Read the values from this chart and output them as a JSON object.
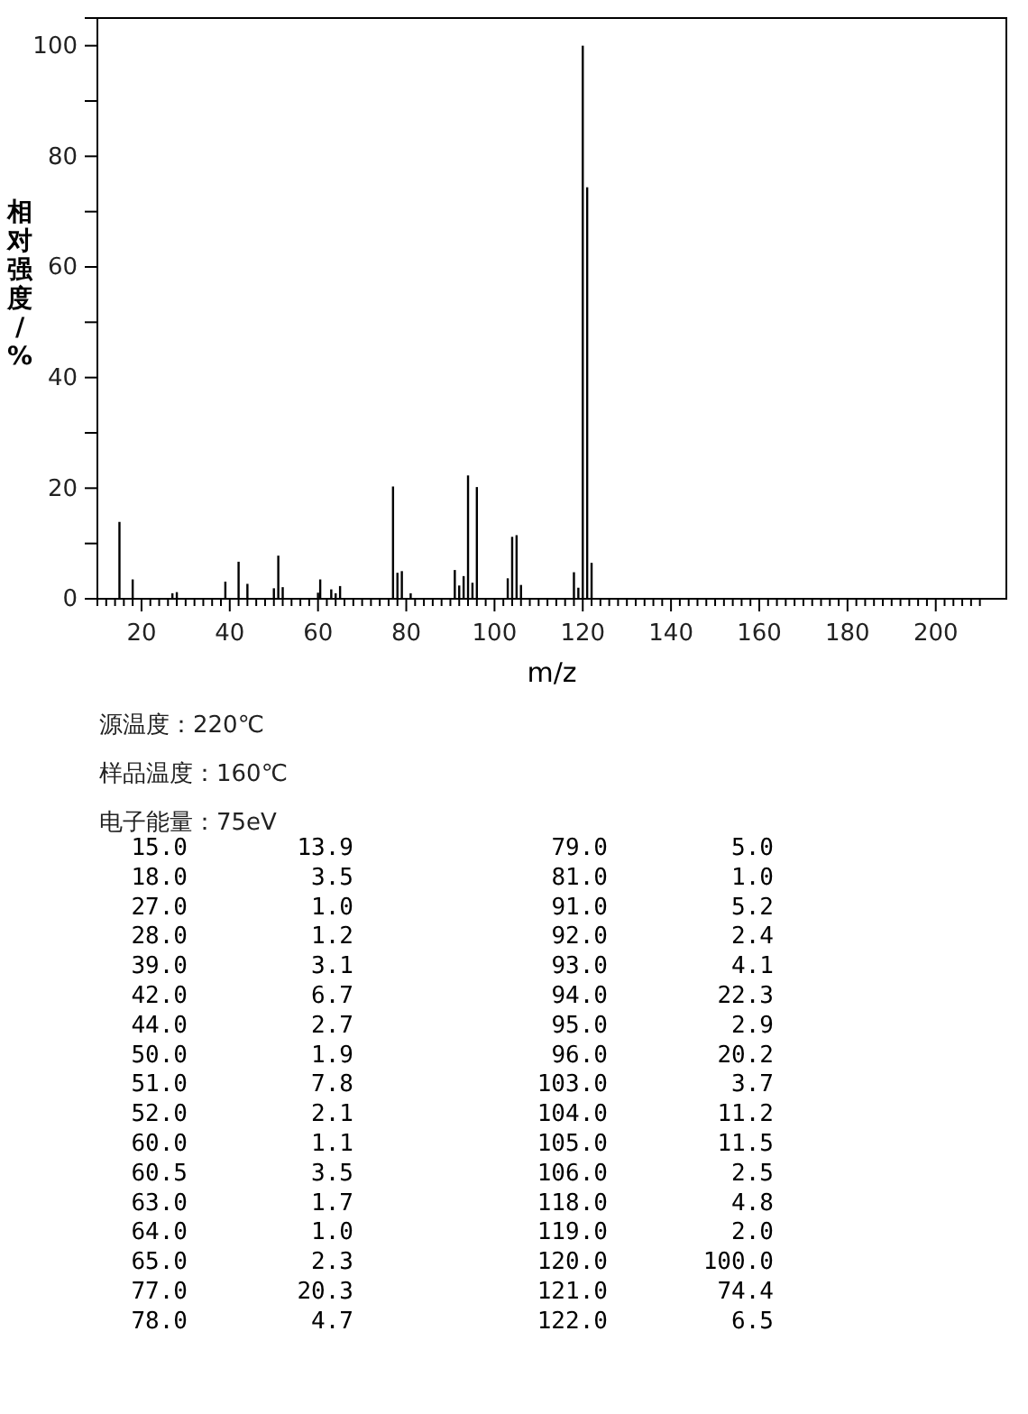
{
  "chart_data": [
    {
      "type": "bar",
      "xlabel": "m/z",
      "ylabel": "相对强度/%",
      "x": [
        15,
        18,
        27,
        28,
        39,
        42,
        44,
        50,
        51,
        52,
        60,
        60.5,
        63,
        64,
        65,
        77,
        78,
        79,
        81,
        91,
        92,
        93,
        94,
        95,
        96,
        103,
        104,
        105,
        106,
        118,
        119,
        120,
        121,
        122
      ],
      "values": [
        13.9,
        3.5,
        1.0,
        1.2,
        3.1,
        6.7,
        2.7,
        1.9,
        7.8,
        2.1,
        1.1,
        3.5,
        1.7,
        1.0,
        2.3,
        20.3,
        4.7,
        5.0,
        1.0,
        5.2,
        2.4,
        4.1,
        22.3,
        2.9,
        20.2,
        3.7,
        11.2,
        11.5,
        2.5,
        4.8,
        2.0,
        100.0,
        74.4,
        6.5
      ],
      "color": "#000000",
      "xlim": [
        10,
        216
      ],
      "ylim": [
        0,
        105
      ],
      "xticks": [
        {
          "value": 10,
          "label": null
        },
        {
          "value": 12,
          "label": null
        },
        {
          "value": 14,
          "label": null
        },
        {
          "value": 16,
          "label": null
        },
        {
          "value": 18,
          "label": null
        },
        20,
        {
          "value": 22,
          "label": null
        },
        {
          "value": 24,
          "label": null
        },
        {
          "value": 26,
          "label": null
        },
        {
          "value": 28,
          "label": null
        },
        {
          "value": 30,
          "label": null
        },
        {
          "value": 32,
          "label": null
        },
        {
          "value": 34,
          "label": null
        },
        {
          "value": 36,
          "label": null
        },
        {
          "value": 38,
          "label": null
        },
        40,
        {
          "value": 42,
          "label": null
        },
        {
          "value": 44,
          "label": null
        },
        {
          "value": 46,
          "label": null
        },
        {
          "value": 48,
          "label": null
        },
        {
          "value": 50,
          "label": null
        },
        {
          "value": 52,
          "label": null
        },
        {
          "value": 54,
          "label": null
        },
        {
          "value": 56,
          "label": null
        },
        {
          "value": 58,
          "label": null
        },
        60,
        {
          "value": 62,
          "label": null
        },
        {
          "value": 64,
          "label": null
        },
        {
          "value": 66,
          "label": null
        },
        {
          "value": 68,
          "label": null
        },
        {
          "value": 70,
          "label": null
        },
        {
          "value": 72,
          "label": null
        },
        {
          "value": 74,
          "label": null
        },
        {
          "value": 76,
          "label": null
        },
        {
          "value": 78,
          "label": null
        },
        80,
        {
          "value": 82,
          "label": null
        },
        {
          "value": 84,
          "label": null
        },
        {
          "value": 86,
          "label": null
        },
        {
          "value": 88,
          "label": null
        },
        {
          "value": 90,
          "label": null
        },
        {
          "value": 92,
          "label": null
        },
        {
          "value": 94,
          "label": null
        },
        {
          "value": 96,
          "label": null
        },
        {
          "value": 98,
          "label": null
        },
        100,
        {
          "value": 102,
          "label": null
        },
        {
          "value": 104,
          "label": null
        },
        {
          "value": 106,
          "label": null
        },
        {
          "value": 108,
          "label": null
        },
        {
          "value": 110,
          "label": null
        },
        {
          "value": 112,
          "label": null
        },
        {
          "value": 114,
          "label": null
        },
        {
          "value": 116,
          "label": null
        },
        {
          "value": 118,
          "label": null
        },
        120,
        {
          "value": 122,
          "label": null
        },
        {
          "value": 124,
          "label": null
        },
        {
          "value": 126,
          "label": null
        },
        {
          "value": 128,
          "label": null
        },
        {
          "value": 130,
          "label": null
        },
        {
          "value": 132,
          "label": null
        },
        {
          "value": 134,
          "label": null
        },
        {
          "value": 136,
          "label": null
        },
        {
          "value": 138,
          "label": null
        },
        140,
        {
          "value": 142,
          "label": null
        },
        {
          "value": 144,
          "label": null
        },
        {
          "value": 146,
          "label": null
        },
        {
          "value": 148,
          "label": null
        },
        {
          "value": 150,
          "label": null
        },
        {
          "value": 152,
          "label": null
        },
        {
          "value": 154,
          "label": null
        },
        {
          "value": 156,
          "label": null
        },
        {
          "value": 158,
          "label": null
        },
        160,
        {
          "value": 162,
          "label": null
        },
        {
          "value": 164,
          "label": null
        },
        {
          "value": 166,
          "label": null
        },
        {
          "value": 168,
          "label": null
        },
        {
          "value": 170,
          "label": null
        },
        {
          "value": 172,
          "label": null
        },
        {
          "value": 174,
          "label": null
        },
        {
          "value": 176,
          "label": null
        },
        {
          "value": 178,
          "label": null
        },
        180,
        {
          "value": 182,
          "label": null
        },
        {
          "value": 184,
          "label": null
        },
        {
          "value": 186,
          "label": null
        },
        {
          "value": 188,
          "label": null
        },
        {
          "value": 190,
          "label": null
        },
        {
          "value": 192,
          "label": null
        },
        {
          "value": 194,
          "label": null
        },
        {
          "value": 196,
          "label": null
        },
        {
          "value": 198,
          "label": null
        },
        200,
        {
          "value": 202,
          "label": null
        },
        {
          "value": 204,
          "label": null
        },
        {
          "value": 206,
          "label": null
        },
        {
          "value": 208,
          "label": null
        },
        {
          "value": 210,
          "label": null
        }
      ],
      "yticks": [
        0,
        {
          "value": 10,
          "label": null
        },
        20,
        {
          "value": 30,
          "label": null
        },
        40,
        {
          "value": 50,
          "label": null
        },
        60,
        {
          "value": 70,
          "label": null
        },
        80,
        {
          "value": 90,
          "label": null
        },
        100
      ],
      "annotations": [
        "源温度：220℃",
        "样品温度：160℃",
        "电子能量：75eV"
      ]
    },
    {
      "type": "other",
      "annotations": [
        "15.0",
        "13.9",
        "79.0",
        "5.0",
        "18.0",
        "3.5",
        "81.0",
        "1.0",
        "27.0",
        "1.0",
        "91.0",
        "5.2",
        "28.0",
        "1.2",
        "92.0",
        "2.4",
        "39.0",
        "3.1",
        "93.0",
        "4.1",
        "42.0",
        "6.7",
        "94.0",
        "22.3",
        "44.0",
        "2.7",
        "95.0",
        "2.9",
        "50.0",
        "1.9",
        "96.0",
        "20.2",
        "51.0",
        "7.8",
        "103.0",
        "3.7",
        "52.0",
        "2.1",
        "104.0",
        "11.2",
        "60.0",
        "1.1",
        "105.0",
        "11.5",
        "60.5",
        "3.5",
        "106.0",
        "2.5",
        "63.0",
        "1.7",
        "118.0",
        "4.8",
        "64.0",
        "1.0",
        "119.0",
        "2.0",
        "65.0",
        "2.3",
        "120.0",
        "100.0",
        "77.0",
        "20.3",
        "121.0",
        "74.4",
        "78.0",
        "4.7",
        "122.0",
        "6.5"
      ]
    }
  ]
}
